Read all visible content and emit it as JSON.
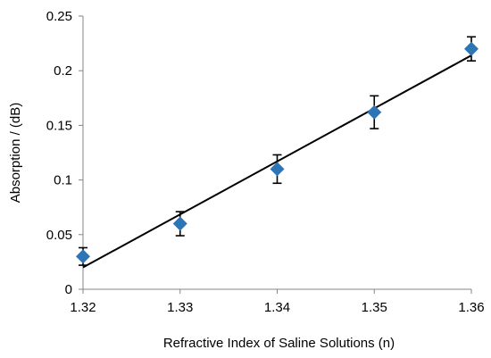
{
  "chart_data": {
    "type": "scatter",
    "title": "",
    "xlabel": "Refractive Index of Saline Solutions (n)",
    "ylabel": "Absorption / (dB)",
    "xlim": [
      1.32,
      1.36
    ],
    "ylim": [
      0,
      0.25
    ],
    "xticks": [
      1.32,
      1.33,
      1.34,
      1.35,
      1.36
    ],
    "xtick_labels": [
      "1.32",
      "1.33",
      "1.34",
      "1.35",
      "1.36"
    ],
    "yticks": [
      0,
      0.05,
      0.1,
      0.15,
      0.2,
      0.25
    ],
    "ytick_labels": [
      "0",
      "0.05",
      "0.1",
      "0.15",
      "0.2",
      "0.25"
    ],
    "grid": false,
    "marker": "diamond",
    "marker_color": "#2E75B6",
    "series": [
      {
        "x": [
          1.32,
          1.33,
          1.34,
          1.35,
          1.36
        ],
        "y": [
          0.03,
          0.06,
          0.11,
          0.162,
          0.22
        ],
        "error": [
          0.008,
          0.011,
          0.013,
          0.015,
          0.011
        ]
      }
    ],
    "trendline": {
      "type": "linear",
      "x": [
        1.32,
        1.36
      ],
      "y": [
        0.02,
        0.214
      ],
      "color": "#000000"
    }
  }
}
